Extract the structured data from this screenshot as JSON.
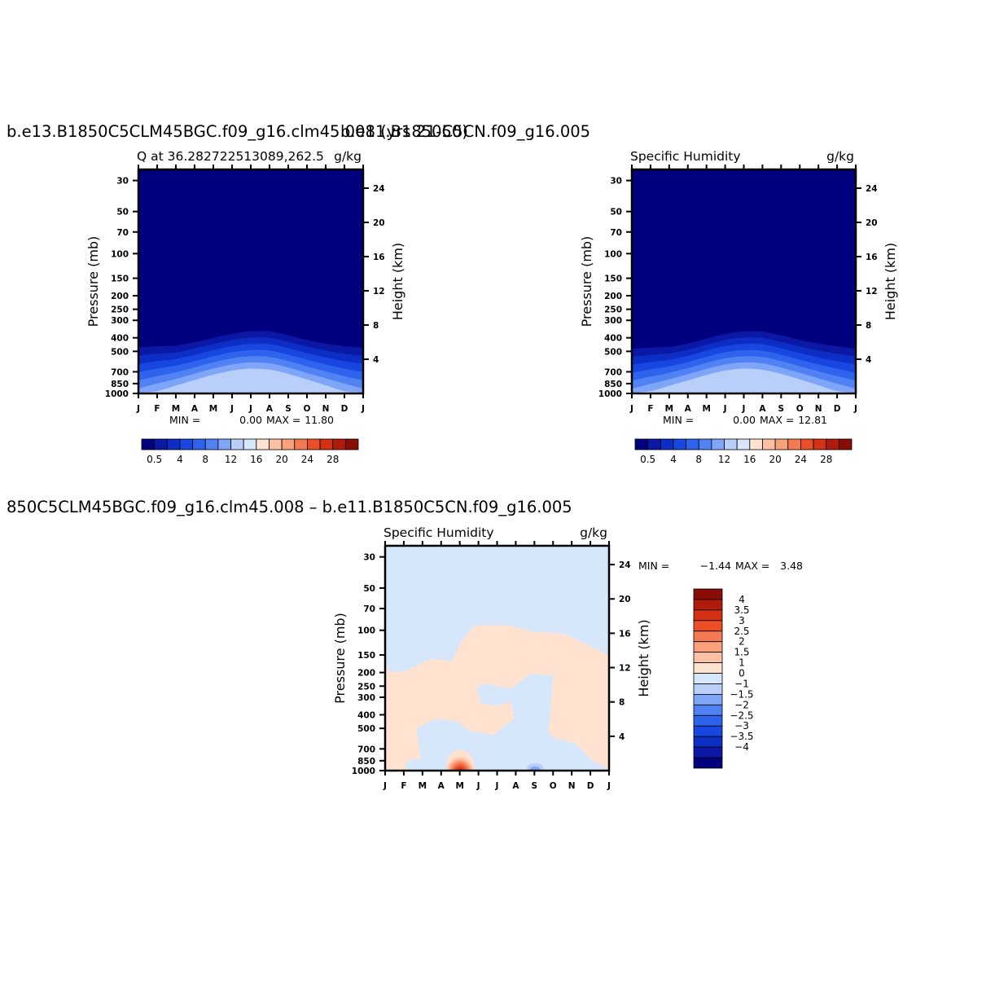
{
  "case_title_left": "b.e13.B1850C5CLM45BGC.f09_g16.clm45.008 (yrs 21-50)",
  "case_title_right": "b.e11.B1850C5CN.f09_g16.005",
  "diff_title": "850C5CLM45BGC.f09_g16.clm45.008 – b.e11.B1850C5CN.f09_g16.005",
  "chart_data": [
    {
      "type": "heatmap",
      "id": "test",
      "title": "Q at 36.282722513089,262.5",
      "units": "g/kg",
      "xlabel": "",
      "ylabel": "Pressure (mb)",
      "y2label": "Height (km)",
      "x_categories": [
        "J",
        "F",
        "M",
        "A",
        "M",
        "J",
        "J",
        "A",
        "S",
        "O",
        "N",
        "D",
        "J"
      ],
      "y_ticks": [
        30,
        50,
        70,
        100,
        150,
        200,
        250,
        300,
        400,
        500,
        700,
        850,
        1000
      ],
      "y_scale": "log",
      "ylim": [
        1000,
        25
      ],
      "y2_ticks": [
        4,
        8,
        12,
        16,
        20,
        24
      ],
      "min_label": "MIN =",
      "min_value": "0.00",
      "max_label": "MAX =",
      "max_value": "11.80",
      "contour_top_pressure_mb": [
        470,
        460,
        455,
        430,
        400,
        375,
        360,
        360,
        385,
        415,
        440,
        460,
        470
      ],
      "contour_levels_g_kg": [
        0.5,
        2,
        4,
        6,
        8,
        10,
        12
      ],
      "colorbar_labels": [
        "0.5",
        "4",
        "8",
        "12",
        "16",
        "20",
        "24",
        "28"
      ]
    },
    {
      "type": "heatmap",
      "id": "control",
      "title": "Specific Humidity",
      "units": "g/kg",
      "xlabel": "",
      "ylabel": "Pressure (mb)",
      "y2label": "Height (km)",
      "x_categories": [
        "J",
        "F",
        "M",
        "A",
        "M",
        "J",
        "J",
        "A",
        "S",
        "O",
        "N",
        "D",
        "J"
      ],
      "y_ticks": [
        30,
        50,
        70,
        100,
        150,
        200,
        250,
        300,
        400,
        500,
        700,
        850,
        1000
      ],
      "y_scale": "log",
      "ylim": [
        1000,
        25
      ],
      "y2_ticks": [
        4,
        8,
        12,
        16,
        20,
        24
      ],
      "min_label": "MIN =",
      "min_value": "0.00",
      "max_label": "MAX =",
      "max_value": "12.81",
      "contour_top_pressure_mb": [
        480,
        470,
        465,
        440,
        405,
        375,
        360,
        362,
        385,
        415,
        440,
        460,
        480
      ],
      "contour_levels_g_kg": [
        0.5,
        2,
        4,
        6,
        8,
        10,
        12
      ],
      "colorbar_labels": [
        "0.5",
        "4",
        "8",
        "12",
        "16",
        "20",
        "24",
        "28"
      ]
    },
    {
      "type": "heatmap",
      "id": "difference",
      "title": "Specific Humidity",
      "units": "g/kg",
      "xlabel": "",
      "ylabel": "Pressure (mb)",
      "y2label": "Height (km)",
      "x_categories": [
        "J",
        "F",
        "M",
        "A",
        "M",
        "J",
        "J",
        "A",
        "S",
        "O",
        "N",
        "D",
        "J"
      ],
      "y_ticks": [
        30,
        50,
        70,
        100,
        150,
        200,
        250,
        300,
        400,
        500,
        700,
        850,
        1000
      ],
      "y_scale": "log",
      "ylim": [
        1000,
        25
      ],
      "y2_ticks": [
        4,
        8,
        12,
        16,
        20,
        24
      ],
      "min_label": "MIN =",
      "min_value": "−1.44",
      "max_label": "MAX =",
      "max_value": "3.48",
      "colorbar_labels": [
        "4",
        "3.5",
        "3",
        "2.5",
        "2",
        "1.5",
        "1",
        "0",
        "−1",
        "−1.5",
        "−2",
        "−2.5",
        "−3",
        "−3.5",
        "−4"
      ]
    }
  ],
  "colors": {
    "seq": [
      "#00007f",
      "#0a18a5",
      "#0d2ec5",
      "#1747e0",
      "#2e63ee",
      "#5082f3",
      "#7ea5f7",
      "#b9cef9",
      "#d6e6fb",
      "#ffe3d0",
      "#fcc1a5",
      "#f8a17a",
      "#f47a52",
      "#ea4f28",
      "#d43112",
      "#b01c0c",
      "#8a0d05"
    ],
    "div_pos": [
      "#8a0d05",
      "#b01c0c",
      "#d43112",
      "#ea4f28",
      "#f47a52",
      "#f8a17a",
      "#fcc1a5",
      "#ffe3d0"
    ],
    "div_neg": [
      "#d6e6fb",
      "#b9cef9",
      "#7ea5f7",
      "#5082f3",
      "#2e63ee",
      "#1747e0",
      "#0d2ec5",
      "#0a18a5",
      "#00007f"
    ]
  }
}
